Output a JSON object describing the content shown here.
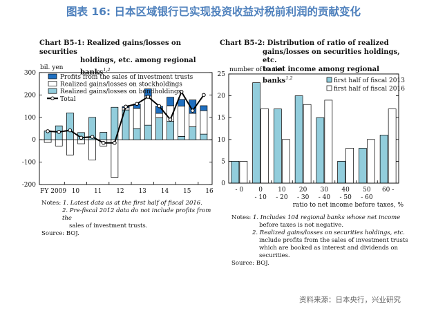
{
  "figure_title": "图表 16: 日本区域银行已实现投资收益对税前利润的贡献变化",
  "footer_source": "资料来源：日本央行，兴业研究",
  "chart_data": [
    {
      "type": "bar",
      "id": "B5-1",
      "title_line1": "Chart B5-1: Realized gains/losses on securities",
      "title_line2": "holdings, etc. among regional banks",
      "title_sup": "1,2",
      "ylabel": "bil. yen",
      "ylim": [
        -200,
        300
      ],
      "yticks": [
        300,
        200,
        100,
        0,
        -100,
        -200
      ],
      "ytick_labels": [
        "300",
        "200",
        "100",
        "0",
        "-100",
        "-200"
      ],
      "x_tick_labels": [
        "FY 2009",
        "10",
        "11",
        "12",
        "13",
        "14",
        "15",
        "16"
      ],
      "x_periods": [
        "FY2009 H1",
        "FY2009 H2",
        "FY2010 H1",
        "FY2010 H2",
        "FY2011 H1",
        "FY2011 H2",
        "FY2012 H1",
        "FY2012 H2",
        "FY2013 H1",
        "FY2013 H2",
        "FY2014 H1",
        "FY2014 H2",
        "FY2015 H1",
        "FY2015 H2",
        "FY2016 H1"
      ],
      "series": [
        {
          "name": "Profits from the sales of investment trusts",
          "color": "#1f6fc0",
          "values": [
            0,
            0,
            0,
            0,
            0,
            0,
            0,
            5,
            20,
            32,
            32,
            38,
            30,
            60,
            22
          ]
        },
        {
          "name": "Realized gains/losses on stockholdings",
          "color": "#ffffff",
          "values": [
            -12,
            -28,
            -68,
            -18,
            -90,
            -28,
            -168,
            10,
            90,
            130,
            20,
            70,
            135,
            60,
            105
          ]
        },
        {
          "name": "Realized gains/losses on bondholdings",
          "color": "#92cddc",
          "values": [
            40,
            62,
            120,
            32,
            100,
            33,
            145,
            133,
            50,
            65,
            98,
            82,
            15,
            58,
            25
          ]
        },
        {
          "name": "Total",
          "color": "#000000",
          "line": true,
          "values": [
            38,
            35,
            42,
            9,
            13,
            -14,
            -14,
            148,
            160,
            192,
            150,
            90,
            214,
            130,
            200
          ]
        }
      ],
      "notes_label": "Notes:",
      "notes": [
        "1. Latest data as at the first half of fiscal 2016.",
        "2. Pre-fiscal 2012 data do not include profits from the",
        "sales of investment trusts."
      ],
      "source": "Source: BOJ."
    },
    {
      "type": "bar",
      "id": "B5-2",
      "title_line1": "Chart B5-2: Distribution of ratio of realized",
      "title_line2": "gains/losses on securities holdings, etc.",
      "title_line3": "to net income among regional banks",
      "title_sup": "1,2",
      "ylabel": "number of banks",
      "xlabel": "ratio to net income before taxes, %",
      "ylim": [
        0,
        25
      ],
      "yticks": [
        25,
        20,
        15,
        10,
        5,
        0
      ],
      "categories": [
        "- 0",
        "0 - 10",
        "10 - 20",
        "20 - 30",
        "30 - 40",
        "40 - 50",
        "50 - 60",
        "60 -"
      ],
      "categories_top": [
        "- 0",
        "0",
        "10",
        "20",
        "30",
        "40",
        "50",
        "60 -"
      ],
      "categories_bottom": [
        "",
        "- 10",
        "- 20",
        "- 30",
        "- 40",
        "- 50",
        "- 60",
        ""
      ],
      "series": [
        {
          "name": "first half of fiscal 2013",
          "color": "#92cddc",
          "values": [
            5,
            23,
            17,
            20,
            15,
            5,
            8,
            11
          ]
        },
        {
          "name": "first half of fiscal 2016",
          "color": "#ffffff",
          "values": [
            5,
            17,
            10,
            18,
            19,
            8,
            10,
            17
          ]
        }
      ],
      "notes_label": "Notes:",
      "notes": [
        "1. Includes 104 regional banks whose net income",
        "before taxes is not negative.",
        "2. Realized gains/losses on securities holdings, etc.",
        "include profits from the sales of investment trusts",
        "which are booked as interest and dividends on",
        "securities."
      ],
      "source": "Source: BOJ."
    }
  ]
}
